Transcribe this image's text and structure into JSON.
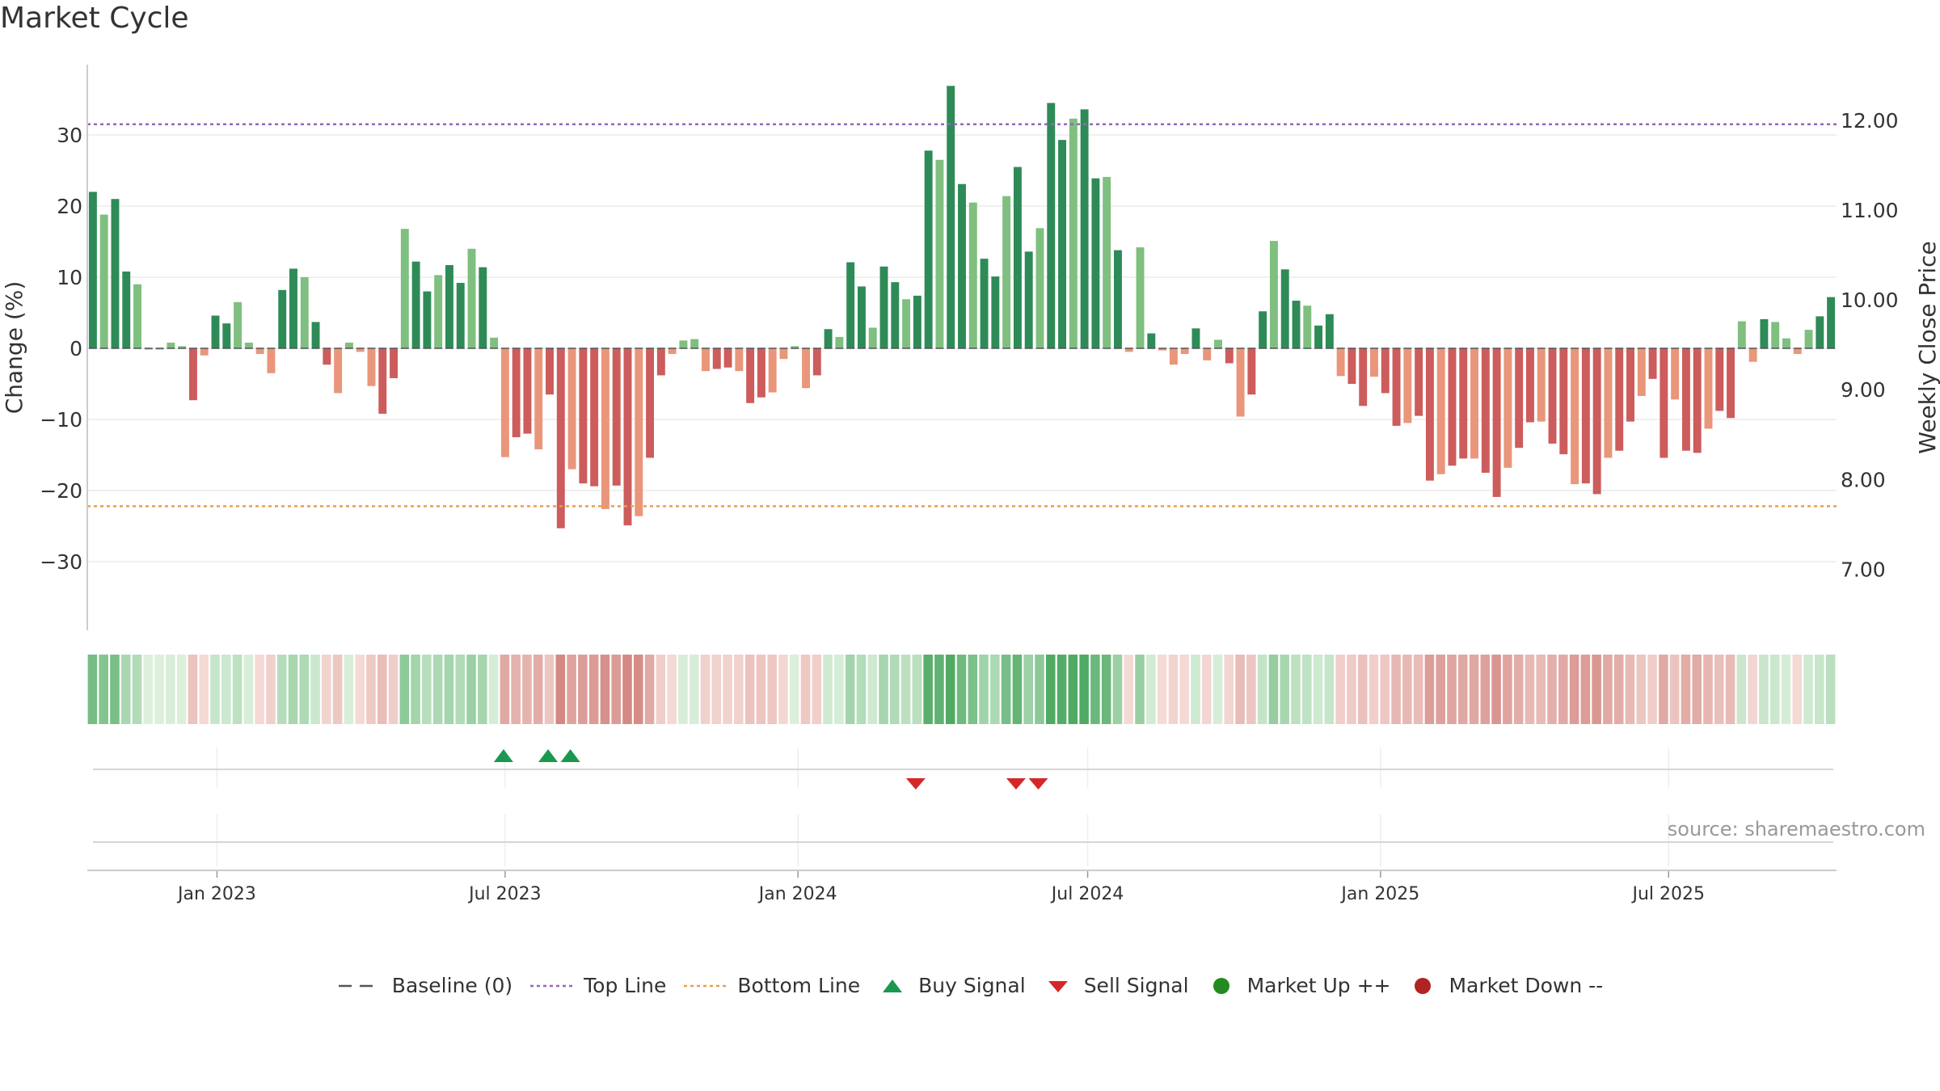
{
  "title": "Market Cycle",
  "source": "source: sharemaestro.com",
  "colors": {
    "pos_dark": "#2e8b57",
    "pos_light": "#7fbf7f",
    "neg_dark": "#cd5c5c",
    "neg_light": "#e9967a",
    "top_line": "#9467bd",
    "bottom_line": "#e6a050",
    "buy": "#1a9850",
    "sell": "#d62728",
    "up": "#228b22",
    "down": "#b22222",
    "baseline": "#555555"
  },
  "legend": [
    {
      "key": "baseline",
      "label": "Baseline (0)",
      "icon": "dash-line-icon"
    },
    {
      "key": "top",
      "label": "Top Line",
      "icon": "dotted-purple-line-icon"
    },
    {
      "key": "bottom",
      "label": "Bottom Line",
      "icon": "dotted-orange-line-icon"
    },
    {
      "key": "buy",
      "label": "Buy Signal",
      "icon": "triangle-up-icon"
    },
    {
      "key": "sell",
      "label": "Sell Signal",
      "icon": "triangle-down-icon"
    },
    {
      "key": "up",
      "label": "Market Up ++",
      "icon": "green-dot-icon"
    },
    {
      "key": "down",
      "label": "Market Down --",
      "icon": "red-dot-icon"
    }
  ],
  "chart_data": {
    "type": "bar",
    "title": "Market Cycle",
    "ylabel": "Change (%)",
    "ylabel_right": "Weekly Close Price",
    "ylim": [
      -40,
      40
    ],
    "yticks": [
      -30,
      -20,
      -10,
      0,
      10,
      20,
      30
    ],
    "ylim_right": [
      6.32,
      12.62
    ],
    "yticks_right": [
      "7.00",
      "8.00",
      "9.00",
      "10.00",
      "11.00",
      "12.00"
    ],
    "top_line": 31.5,
    "bottom_line": -22.2,
    "x_start": "2022-10-15",
    "x_step_days": 7,
    "xticks": [
      {
        "label": "Jan 2023",
        "date": "2023-01-01"
      },
      {
        "label": "Jul 2023",
        "date": "2023-07-01"
      },
      {
        "label": "Jan 2024",
        "date": "2024-01-01"
      },
      {
        "label": "Jul 2024",
        "date": "2024-07-01"
      },
      {
        "label": "Jan 2025",
        "date": "2025-01-01"
      },
      {
        "label": "Jul 2025",
        "date": "2025-07-01"
      }
    ],
    "values": [
      22,
      18.8,
      21,
      10.8,
      9,
      0,
      0,
      0.8,
      0.3,
      -7.3,
      -1,
      4.6,
      3.5,
      6.5,
      0.8,
      -0.8,
      -3.5,
      8.2,
      11.2,
      10,
      3.7,
      -2.3,
      -6.3,
      0.8,
      -0.5,
      -5.3,
      -9.2,
      -4.2,
      16.8,
      12.2,
      8,
      10.3,
      11.7,
      9.2,
      14,
      11.4,
      1.5,
      -15.3,
      -12.5,
      -12,
      -14.2,
      -6.5,
      -25.3,
      -17,
      -19,
      -19.4,
      -22.6,
      -19.3,
      -24.9,
      -23.6,
      -15.4,
      -3.8,
      -0.8,
      1.1,
      1.3,
      -3.2,
      -2.9,
      -2.7,
      -3.2,
      -7.7,
      -6.9,
      -6.2,
      -1.5,
      0.3,
      -5.6,
      -3.8,
      2.7,
      1.6,
      12.1,
      8.7,
      2.9,
      11.5,
      9.3,
      6.9,
      7.4,
      27.8,
      26.5,
      36.9,
      23.1,
      20.5,
      12.6,
      10.1,
      21.4,
      25.5,
      13.6,
      16.9,
      34.5,
      29.3,
      32.3,
      33.6,
      23.9,
      24.1,
      13.8,
      -0.5,
      14.2,
      2.1,
      -0.3,
      -2.3,
      -0.8,
      2.8,
      -1.7,
      1.2,
      -2.1,
      -9.6,
      -6.5,
      5.2,
      15.1,
      11.1,
      6.7,
      6,
      3.2,
      4.8,
      -3.9,
      -5,
      -8.1,
      -4,
      -6.3,
      -10.9,
      -10.5,
      -9.5,
      -18.6,
      -17.7,
      -16.5,
      -15.5,
      -15.5,
      -17.5,
      -20.9,
      -16.8,
      -14,
      -10.4,
      -10.3,
      -13.4,
      -14.9,
      -19.1,
      -19,
      -20.5,
      -15.4,
      -14.4,
      -10.3,
      -6.7,
      -4.3,
      -15.4,
      -7.2,
      -14.4,
      -14.7,
      -11.3,
      -8.8,
      -9.8,
      3.8,
      -1.9,
      4.1,
      3.7,
      1.4,
      -0.8,
      2.6,
      4.5,
      7.2
    ],
    "buy_signals": [
      "2023-06-30",
      "2023-07-28",
      "2023-08-11"
    ],
    "sell_signals": [
      "2024-03-15",
      "2024-05-17",
      "2024-05-31"
    ]
  }
}
